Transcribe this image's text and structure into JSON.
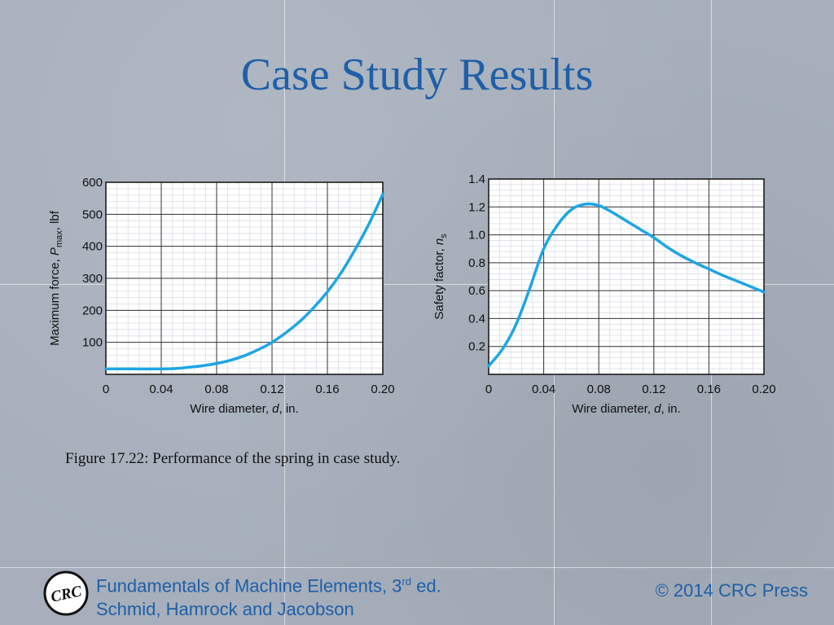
{
  "slide": {
    "title": "Case Study Results",
    "caption": "Figure 17.22:  Performance of the spring in case study."
  },
  "footer": {
    "logo_text": "CRC",
    "book_line1_prefix": "Fundamentals of Machine Elements, 3",
    "book_line1_sup": "rd",
    "book_line1_suffix": " ed.",
    "book_line2": "Schmid, Hamrock and Jacobson",
    "copyright": "© 2014 CRC Press"
  },
  "colors": {
    "title": "#1f5fa8",
    "curve": "#1ea5e6",
    "grid_major": "#333333",
    "grid_minor": "#d9dde3"
  },
  "chart_data": [
    {
      "type": "line",
      "xlabel_main": "Wire diameter, ",
      "xlabel_var": "d",
      "xlabel_unit": ", in.",
      "ylabel_main": "Maximum force, ",
      "ylabel_var": "P",
      "ylabel_sub": "max",
      "ylabel_unit": ", lbf",
      "xlim": [
        0,
        0.2
      ],
      "ylim": [
        0,
        600
      ],
      "xticks": [
        0,
        0.04,
        0.08,
        0.12,
        0.16,
        0.2
      ],
      "xtick_labels": [
        "0",
        "0.04",
        "0.08",
        "0.12",
        "0.16",
        "0.20"
      ],
      "yticks": [
        100,
        200,
        300,
        400,
        500,
        600
      ],
      "ytick_labels": [
        "100",
        "200",
        "300",
        "400",
        "500",
        "600"
      ],
      "grid": true,
      "series": [
        {
          "x": [
            0,
            0.02,
            0.04,
            0.05,
            0.06,
            0.07,
            0.08,
            0.09,
            0.1,
            0.11,
            0.12,
            0.13,
            0.14,
            0.15,
            0.16,
            0.17,
            0.18,
            0.19,
            0.2
          ],
          "y": [
            17,
            17,
            17,
            18,
            22,
            27,
            34,
            44,
            58,
            77,
            100,
            130,
            165,
            208,
            258,
            318,
            390,
            470,
            563
          ]
        }
      ]
    },
    {
      "type": "line",
      "xlabel_main": "Wire diameter, ",
      "xlabel_var": "d",
      "xlabel_unit": ", in.",
      "ylabel_main": "Safety factor, ",
      "ylabel_var": "n",
      "ylabel_sub": "s",
      "ylabel_unit": "",
      "xlim": [
        0,
        0.2
      ],
      "ylim": [
        0,
        1.4
      ],
      "xticks": [
        0,
        0.04,
        0.08,
        0.12,
        0.16,
        0.2
      ],
      "xtick_labels": [
        "0",
        "0.04",
        "0.08",
        "0.12",
        "0.16",
        "0.20"
      ],
      "yticks": [
        0.2,
        0.4,
        0.6,
        0.8,
        1.0,
        1.2,
        1.4
      ],
      "ytick_labels": [
        "0.2",
        "0.4",
        "0.6",
        "0.8",
        "1.0",
        "1.2",
        "1.4"
      ],
      "grid": true,
      "series": [
        {
          "x": [
            0,
            0.01,
            0.02,
            0.03,
            0.04,
            0.05,
            0.06,
            0.07,
            0.08,
            0.09,
            0.1,
            0.11,
            0.12,
            0.13,
            0.14,
            0.15,
            0.16,
            0.17,
            0.18,
            0.19,
            0.2
          ],
          "y": [
            0.06,
            0.18,
            0.36,
            0.62,
            0.9,
            1.07,
            1.18,
            1.22,
            1.21,
            1.16,
            1.1,
            1.04,
            0.98,
            0.91,
            0.85,
            0.8,
            0.755,
            0.71,
            0.67,
            0.63,
            0.59
          ]
        }
      ]
    }
  ]
}
